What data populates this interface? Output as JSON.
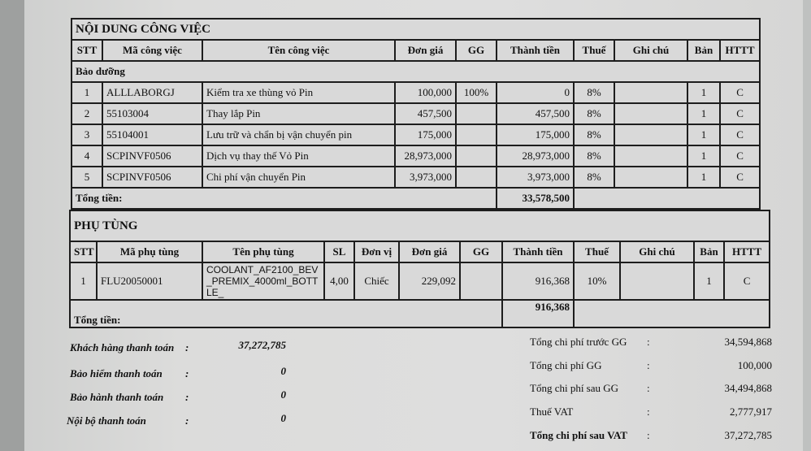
{
  "work": {
    "title": "NỘI DUNG CÔNG VIỆC",
    "headers": [
      "STT",
      "Mã công việc",
      "Tên công việc",
      "Đơn giá",
      "GG",
      "Thành tiền",
      "Thuế",
      "Ghi chú",
      "Bản",
      "HTTT"
    ],
    "group": "Bảo dưỡng",
    "rows": [
      {
        "stt": "1",
        "code": "ALLLABORGJ",
        "name": "Kiểm tra xe thùng vỏ Pin",
        "price": "100,000",
        "gg": "100%",
        "total": "0",
        "tax": "8%",
        "note": "",
        "copies": "1",
        "httt": "C"
      },
      {
        "stt": "2",
        "code": "55103004",
        "name": "Thay lắp Pin",
        "price": "457,500",
        "gg": "",
        "total": "457,500",
        "tax": "8%",
        "note": "",
        "copies": "1",
        "httt": "C"
      },
      {
        "stt": "3",
        "code": "55104001",
        "name": "Lưu trữ và chẩn bị vận chuyển pin",
        "price": "175,000",
        "gg": "",
        "total": "175,000",
        "tax": "8%",
        "note": "",
        "copies": "1",
        "httt": "C"
      },
      {
        "stt": "4",
        "code": "SCPINVF0506",
        "name": "Dịch vụ thay thế Vỏ Pin",
        "price": "28,973,000",
        "gg": "",
        "total": "28,973,000",
        "tax": "8%",
        "note": "",
        "copies": "1",
        "httt": "C"
      },
      {
        "stt": "5",
        "code": "SCPINVF0506",
        "name": "Chi phí vận chuyển Pin",
        "price": "3,973,000",
        "gg": "",
        "total": "3,973,000",
        "tax": "8%",
        "note": "",
        "copies": "1",
        "httt": "C"
      }
    ],
    "total_label": "Tổng tiền:",
    "total": "33,578,500"
  },
  "parts": {
    "title": "PHỤ TÙNG",
    "headers": [
      "STT",
      "Mã phụ tùng",
      "Tên phụ tùng",
      "SL",
      "Đơn vị",
      "Đơn giá",
      "GG",
      "Thành tiền",
      "Thuế",
      "Ghi chú",
      "Bản",
      "HTTT"
    ],
    "rows": [
      {
        "stt": "1",
        "code": "FLU20050001",
        "name": "COOLANT_AF2100_BEV_PREMIX_4000ml_BOTTLE_",
        "qty": "4,00",
        "unit": "Chiếc",
        "price": "229,092",
        "gg": "",
        "total": "916,368",
        "tax": "10%",
        "note": "",
        "copies": "1",
        "httt": "C"
      }
    ],
    "total_label": "Tổng tiền:",
    "total": "916,368"
  },
  "payments": [
    {
      "label": "Khách hàng thanh toán",
      "value": "37,272,785"
    },
    {
      "label": "Bảo hiểm thanh toán",
      "value": "0"
    },
    {
      "label": "Bảo hành thanh toán",
      "value": "0"
    },
    {
      "label": "Nội bộ thanh toán",
      "value": "0"
    }
  ],
  "summary": [
    {
      "label": "Tổng chi phí trước GG",
      "value": "34,594,868"
    },
    {
      "label": "Tổng chi phí GG",
      "value": "100,000"
    },
    {
      "label": "Tổng chi phí sau GG",
      "value": "34,494,868"
    },
    {
      "label": "Thuế VAT",
      "value": "2,777,917"
    },
    {
      "label": "Tổng chi phí sau VAT",
      "value": "37,272,785"
    }
  ]
}
